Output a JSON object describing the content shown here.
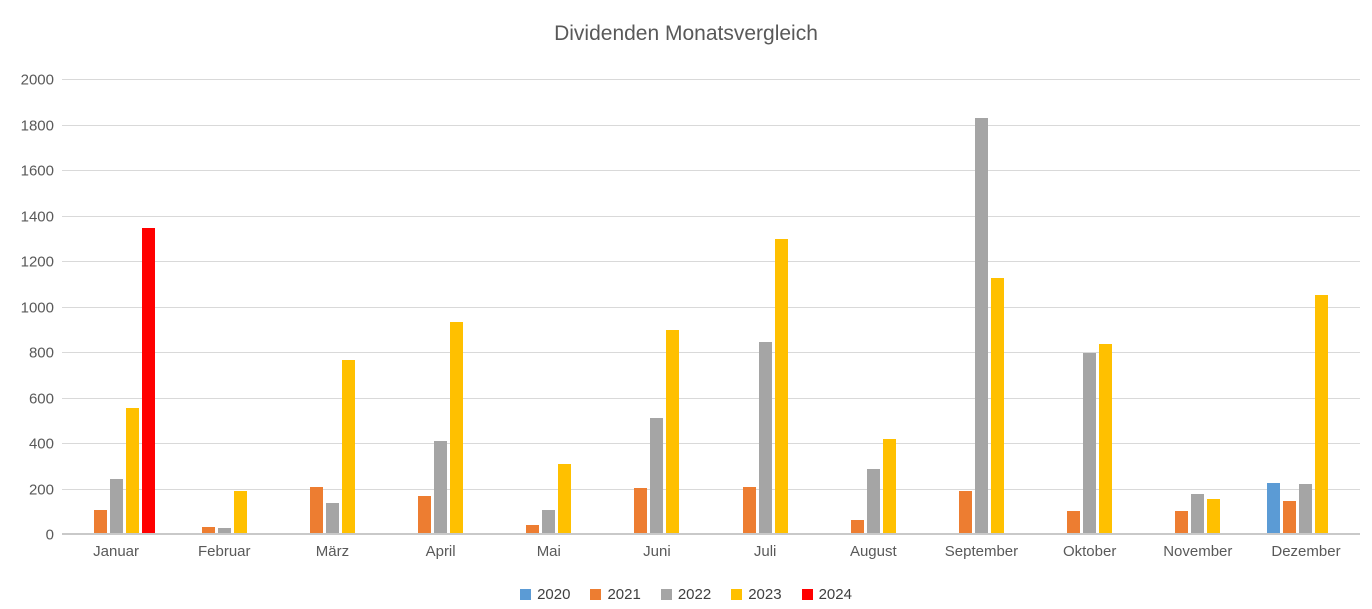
{
  "chart_data": {
    "type": "bar",
    "title": "Dividenden Monatsvergleich",
    "categories": [
      "Januar",
      "Februar",
      "März",
      "April",
      "Mai",
      "Juni",
      "Juli",
      "August",
      "September",
      "Oktober",
      "November",
      "Dezember"
    ],
    "series": [
      {
        "name": "2020",
        "color": "#5B9BD5",
        "values": [
          0,
          0,
          0,
          0,
          0,
          0,
          0,
          0,
          0,
          0,
          0,
          230
        ]
      },
      {
        "name": "2021",
        "color": "#ED7D31",
        "values": [
          110,
          35,
          210,
          170,
          45,
          205,
          210,
          65,
          195,
          105,
          105,
          150
        ]
      },
      {
        "name": "2022",
        "color": "#A5A5A5",
        "values": [
          245,
          30,
          140,
          415,
          110,
          515,
          850,
          290,
          1835,
          800,
          180,
          225
        ]
      },
      {
        "name": "2023",
        "color": "#FFC000",
        "values": [
          560,
          195,
          770,
          935,
          310,
          900,
          1300,
          420,
          1130,
          840,
          160,
          1055
        ]
      },
      {
        "name": "2024",
        "color": "#FF0000",
        "values": [
          1350,
          0,
          0,
          0,
          0,
          0,
          0,
          0,
          0,
          0,
          0,
          0
        ]
      }
    ],
    "ylim": [
      0,
      2000
    ],
    "ytick_step": 200,
    "grid": true,
    "legend_position": "bottom",
    "styles": {
      "text_color": "#595959",
      "gridline_color": "#D9D9D9",
      "axis_line_color": "#C9C9C9",
      "background": "#FFFFFF"
    }
  }
}
